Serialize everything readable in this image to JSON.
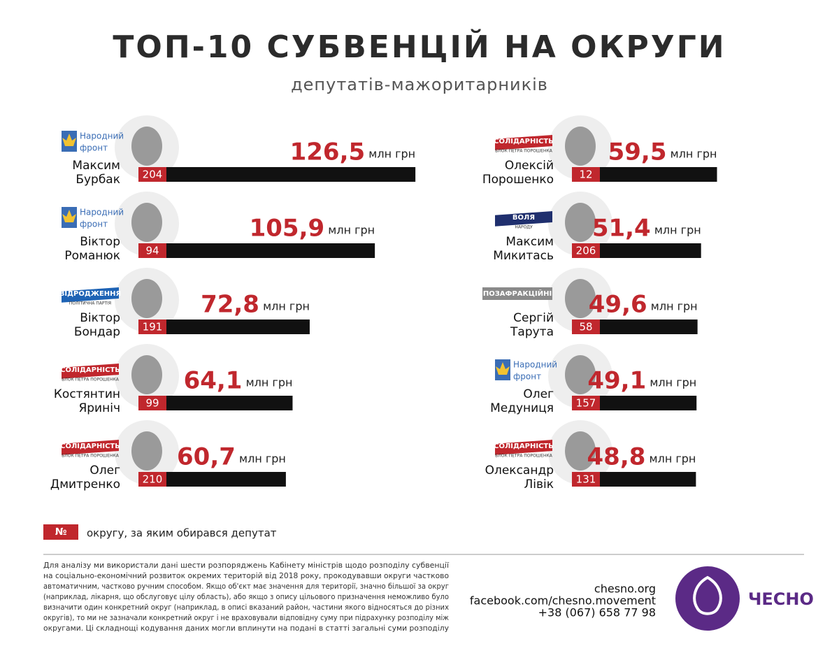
{
  "chart_data": {
    "type": "bar",
    "title": "ТОП-10 СУБВЕНЦІЙ НА ОКРУГИ",
    "subtitle": "депутатів-мажоритарників",
    "unit": "млн грн",
    "categories": [
      [
        "Максим",
        "Бурбак"
      ],
      [
        "Віктор",
        "Романюк"
      ],
      [
        "Віктор",
        "Бондар"
      ],
      [
        "Костянтин",
        "Яриніч"
      ],
      [
        "Олег",
        "Дмитренко"
      ],
      [
        "Олексій",
        "Порошенко"
      ],
      [
        "Максим",
        "Микитась"
      ],
      [
        "Сергій",
        "Тарута"
      ],
      [
        "Олег",
        "Медуниця"
      ],
      [
        "Олександр",
        "Лівік"
      ]
    ],
    "values": [
      126.5,
      105.9,
      72.8,
      64.1,
      60.7,
      59.5,
      51.4,
      49.6,
      49.1,
      48.8
    ],
    "value_labels": [
      "126,5",
      "105,9",
      "72,8",
      "64,1",
      "60,7",
      "59,5",
      "51,4",
      "49,6",
      "49,1",
      "48,8"
    ],
    "districts": [
      204,
      94,
      191,
      99,
      210,
      12,
      206,
      58,
      157,
      131
    ],
    "parties": [
      {
        "lines": [
          "Народний",
          "фронт"
        ],
        "color": "#3a6db5"
      },
      {
        "lines": [
          "Народний",
          "фронт"
        ],
        "color": "#3a6db5"
      },
      {
        "lines": [
          "ВІДРОДЖЕННЯ",
          "ПОЛІТИЧНА ПАРТІЯ"
        ],
        "background": "#1e63b5"
      },
      {
        "lines": [
          "СОЛІДАРНІСТЬ",
          "БЛОК ПЕТРА ПОРОШЕНКА"
        ],
        "background": "#c0272d"
      },
      {
        "lines": [
          "СОЛІДАРНІСТЬ",
          "БЛОК ПЕТРА ПОРОШЕНКА"
        ],
        "background": "#c0272d"
      },
      {
        "lines": [
          "СОЛІДАРНІСТЬ",
          "БЛОК ПЕТРА ПОРОШЕНКА"
        ],
        "background": "#c0272d"
      },
      {
        "lines": [
          "ВОЛЯ",
          "НАРОДУ"
        ],
        "background": "#1f2f6e"
      },
      {
        "lines": [
          "ПОЗАФРАКЦІЙНІ"
        ],
        "background": "#8a8a8a"
      },
      {
        "lines": [
          "Народний",
          "фронт"
        ],
        "color": "#3a6db5"
      },
      {
        "lines": [
          "СОЛІДАРНІСТЬ",
          "БЛОК ПЕТРА ПОРОШЕНКА"
        ],
        "background": "#c0272d"
      }
    ],
    "color": "#111111",
    "value_color": "#c0272d",
    "district_color": "#c0272d",
    "xlim": [
      0,
      130
    ],
    "legend": {
      "symbol": "№",
      "text": "округу, за яким обирався депутат"
    }
  },
  "footer": {
    "note": [
      "Для аналізу ми використали дані шести розпоряджень Кабінету міністрів щодо розподілу субвенції",
      "на соціально-економічний розвиток окремих територій від 2018 року, прокодувавши округи частково",
      "автоматичним, частково ручним способом. Якщо об'єкт має значення для території, значно більшої за округ",
      "(наприклад, лікарня, що обслуговує цілу область), або якщо з опису цільового призначення неможливо було",
      "визначити один конкретний округ (наприклад, в описі вказаний район, частини якого відносяться до різних",
      "округів), то ми не зазначали конкретний округ і не враховували відповідну суму при підрахунку розподілу між",
      "округами. Ці складнощі кодування даних могли вплинути на подані в статті загальні суми розподілу"
    ],
    "contacts": [
      "chesno.org",
      "facebook.com/chesno.movement",
      "+38 (067) 658 77 98"
    ],
    "brand": "ЧЕСНО"
  }
}
